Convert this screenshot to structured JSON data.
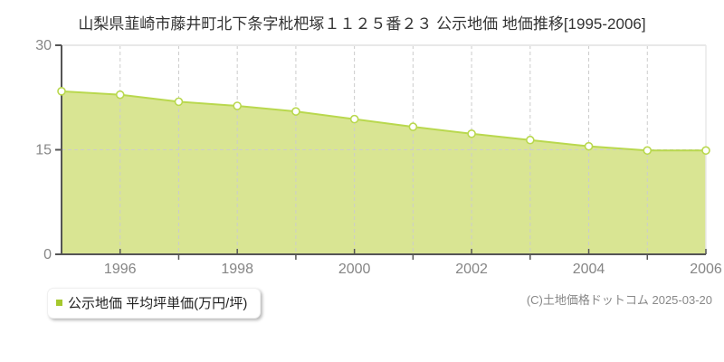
{
  "page": {
    "title": "山梨県韮崎市藤井町北下条字枇杷塚１１２５番２３ 公示地価 地価推移[1995-2006]"
  },
  "chart_data": {
    "type": "area",
    "title": "山梨県韮崎市藤井町北下条字枇杷塚１１２５番２３ 公示地価 地価推移[1995-2006]",
    "x": [
      1995,
      1996,
      1997,
      1998,
      1999,
      2000,
      2001,
      2002,
      2003,
      2004,
      2005,
      2006
    ],
    "series": [
      {
        "name": "公示地価 平均坪単価(万円/坪)",
        "values": [
          23.4,
          22.9,
          21.9,
          21.3,
          20.5,
          19.4,
          18.3,
          17.3,
          16.4,
          15.5,
          14.9,
          14.9
        ]
      }
    ],
    "ylim": [
      0,
      30
    ],
    "yticks": [
      0,
      15,
      30
    ],
    "xtick_labeled_years": [
      1996,
      1998,
      2000,
      2002,
      2004,
      2006
    ],
    "grid": {
      "vertical": "dashed line at every year",
      "horizontal_at": 15,
      "style": "dashed"
    },
    "legend_position": "bottom-left",
    "colors": {
      "area_fill": "#d9e593",
      "line": "#b9d84e",
      "marker_fill": "#ffffff",
      "marker_stroke": "#b9d84e",
      "legend_swatch": "#a5c82d",
      "axis": "#555555",
      "grid": "#cccccc",
      "border_light": "#e8e8e8",
      "tick_label": "#858585",
      "title": "#333333"
    }
  },
  "legend": {
    "label": "公示地価 平均坪単価(万円/坪)"
  },
  "footer": {
    "copyright": "(C)土地価格ドットコム 2025-03-20"
  }
}
